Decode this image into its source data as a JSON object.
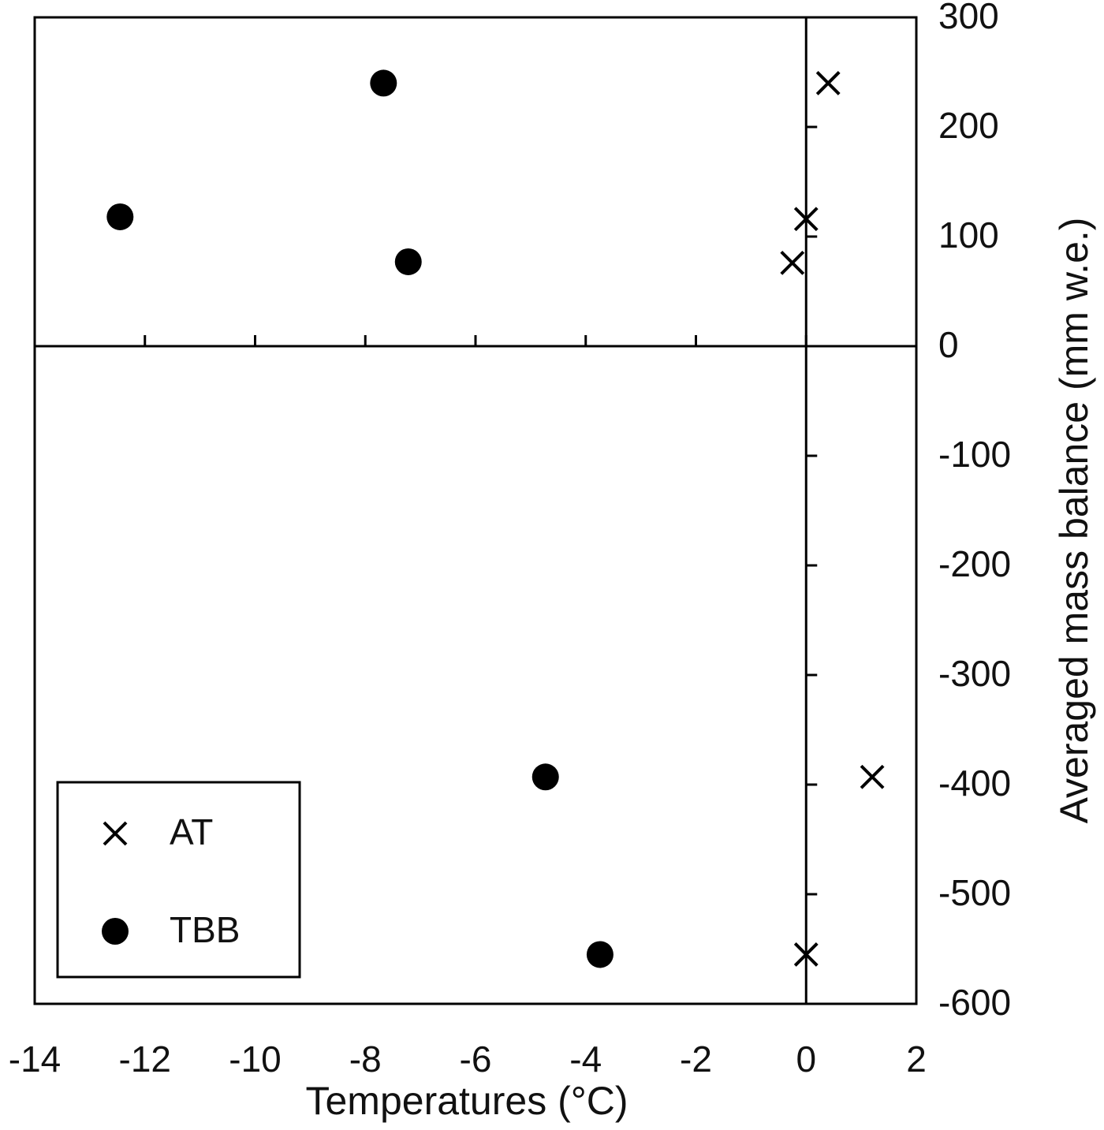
{
  "chart_data": {
    "type": "scatter",
    "xlabel": "Temperatures (°C)",
    "ylabel": "Averaged mass balance (mm w.e.)",
    "xlim": [
      -14,
      2
    ],
    "xticks": [
      -14,
      -12,
      -10,
      -8,
      -6,
      -4,
      -2,
      0,
      2
    ],
    "ylim": [
      -600,
      300
    ],
    "yticks": [
      -600,
      -500,
      -400,
      -300,
      -200,
      -100,
      0,
      100,
      200,
      300
    ],
    "grid": false,
    "legend": "lower left",
    "series": [
      {
        "name": "AT",
        "color": "#000000",
        "marker": "x",
        "x": [
          0.4,
          0,
          -0.25,
          1.2,
          0
        ],
        "y": [
          240,
          116,
          76,
          -393,
          -555
        ]
      },
      {
        "name": "TBB",
        "color": "#000000",
        "marker": "o",
        "x": [
          -12.45,
          -7.67,
          -7.22,
          -4.73,
          -3.74
        ],
        "y": [
          118,
          240,
          77,
          -393,
          -555
        ]
      }
    ]
  }
}
